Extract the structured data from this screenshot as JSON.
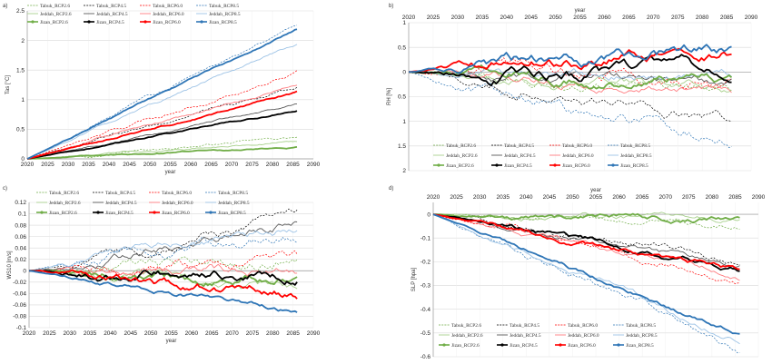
{
  "chart_data": [
    {
      "id": "a",
      "type": "line",
      "panel_label": "a)",
      "ylabel": "Tas [°C]",
      "xlabel": "year",
      "x_axis_position": "bottom",
      "xlim": [
        2020,
        2090
      ],
      "ylim": [
        0,
        2.5
      ],
      "xticks": [
        2020,
        2025,
        2030,
        2035,
        2040,
        2045,
        2050,
        2055,
        2060,
        2065,
        2070,
        2075,
        2080,
        2085,
        2090
      ],
      "yticks": [
        0,
        0.5,
        1,
        1.5,
        2,
        2.5
      ],
      "ytick_labels": [
        "0",
        "0.5",
        "1",
        "1.5",
        "2",
        "2.5"
      ],
      "legend_position": "top",
      "grid": true,
      "series": [
        {
          "name": "Tabuk_RCP2.6",
          "color": "#70AD47",
          "style": "dash-thin",
          "start": 0,
          "end": 0.36,
          "wiggle": 0.025
        },
        {
          "name": "Tabuk_RCP4.5",
          "color": "#000000",
          "style": "dash-thin",
          "start": 0,
          "end": 1.22,
          "wiggle": 0.03
        },
        {
          "name": "Tabuk_RCP6.0",
          "color": "#FF0000",
          "style": "dash-thin",
          "start": 0,
          "end": 1.45,
          "wiggle": 0.035
        },
        {
          "name": "Tabuk_RCP8.5",
          "color": "#2E75B6",
          "style": "dash-thin",
          "start": 0,
          "end": 2.3,
          "wiggle": 0.035
        },
        {
          "name": "Jeddah_RCP2.6",
          "color": "#A9D18E",
          "style": "solid-thin",
          "start": 0,
          "end": 0.3,
          "wiggle": 0.02
        },
        {
          "name": "Jeddah_RCP4.5",
          "color": "#595959",
          "style": "solid-thin",
          "start": 0,
          "end": 0.92,
          "wiggle": 0.02
        },
        {
          "name": "Jeddah_RCP6.0",
          "color": "#FF7C80",
          "style": "solid-thin",
          "start": 0,
          "end": 1.25,
          "wiggle": 0.025
        },
        {
          "name": "Jeddah_RCP8.5",
          "color": "#9DC3E6",
          "style": "solid-thin",
          "start": 0,
          "end": 1.95,
          "wiggle": 0.025
        },
        {
          "name": "Jizan_RCP2.6",
          "color": "#70AD47",
          "style": "marker-thick",
          "start": 0,
          "end": 0.2,
          "wiggle": 0.015
        },
        {
          "name": "Jizan_RCP4.5",
          "color": "#000000",
          "style": "marker-thick",
          "start": 0,
          "end": 0.82,
          "wiggle": 0.015
        },
        {
          "name": "Jizan_RCP6.0",
          "color": "#FF0000",
          "style": "marker-thick",
          "start": 0,
          "end": 1.12,
          "wiggle": 0.02
        },
        {
          "name": "Jizan_RCP8.5",
          "color": "#2E75B6",
          "style": "marker-thick",
          "start": 0,
          "end": 2.2,
          "wiggle": 0.02
        }
      ]
    },
    {
      "id": "b",
      "type": "line",
      "panel_label": "b)",
      "ylabel": "RH [%]",
      "xlabel": "year",
      "x_axis_position": "top",
      "xlim": [
        2020,
        2090
      ],
      "ylim": [
        -2,
        1
      ],
      "xticks": [
        2020,
        2025,
        2030,
        2035,
        2040,
        2045,
        2050,
        2055,
        2060,
        2065,
        2070,
        2075,
        2080,
        2085,
        2090
      ],
      "yticks": [
        -2,
        -1.5,
        -1,
        -0.5,
        0,
        0.5,
        1
      ],
      "ytick_labels": [
        "2",
        "1.5",
        "1",
        "0.5",
        "0",
        "0.5",
        "1"
      ],
      "legend_position": "bottom",
      "grid": true,
      "series": [
        {
          "name": "Tabuk_RCP2.6",
          "color": "#70AD47",
          "style": "dash-thin",
          "start": 0,
          "end": -0.5,
          "wiggle": 0.15
        },
        {
          "name": "Tabuk_RCP4.5",
          "color": "#000000",
          "style": "dash-thin",
          "start": 0,
          "end": -0.95,
          "wiggle": 0.15
        },
        {
          "name": "Tabuk_RCP6.0",
          "color": "#FF0000",
          "style": "dash-thin",
          "start": 0,
          "end": -0.3,
          "wiggle": 0.18
        },
        {
          "name": "Tabuk_RCP8.5",
          "color": "#2E75B6",
          "style": "dash-thin",
          "start": 0,
          "end": -1.45,
          "wiggle": 0.18
        },
        {
          "name": "Jeddah_RCP2.6",
          "color": "#A9D18E",
          "style": "solid-thin",
          "start": 0,
          "end": -0.3,
          "wiggle": 0.12
        },
        {
          "name": "Jeddah_RCP4.5",
          "color": "#595959",
          "style": "solid-thin",
          "start": 0,
          "end": -0.2,
          "wiggle": 0.12
        },
        {
          "name": "Jeddah_RCP6.0",
          "color": "#FF7C80",
          "style": "solid-thin",
          "start": 0,
          "end": -0.35,
          "wiggle": 0.12
        },
        {
          "name": "Jeddah_RCP8.5",
          "color": "#9DC3E6",
          "style": "solid-thin",
          "start": 0,
          "end": -0.1,
          "wiggle": 0.12
        },
        {
          "name": "Jizan_RCP2.6",
          "color": "#70AD47",
          "style": "marker-thick",
          "start": 0,
          "end": -0.2,
          "wiggle": 0.14
        },
        {
          "name": "Jizan_RCP4.5",
          "color": "#000000",
          "style": "marker-thick",
          "start": 0,
          "end": 0.0,
          "wiggle": 0.16
        },
        {
          "name": "Jizan_RCP6.0",
          "color": "#FF0000",
          "style": "marker-thick",
          "start": 0,
          "end": 0.45,
          "wiggle": 0.15
        },
        {
          "name": "Jizan_RCP8.5",
          "color": "#2E75B6",
          "style": "marker-thick",
          "start": 0,
          "end": 0.45,
          "wiggle": 0.16
        }
      ]
    },
    {
      "id": "c",
      "type": "line",
      "panel_label": "c)",
      "ylabel": "WS10 [m/s]",
      "xlabel": "year",
      "x_axis_position": "bottom",
      "xlim": [
        2020,
        2090
      ],
      "ylim": [
        -0.1,
        0.12
      ],
      "xticks": [
        2020,
        2025,
        2030,
        2035,
        2040,
        2045,
        2050,
        2055,
        2060,
        2065,
        2070,
        2075,
        2080,
        2085,
        2090
      ],
      "yticks": [
        -0.1,
        -0.08,
        -0.06,
        -0.04,
        -0.02,
        0,
        0.02,
        0.04,
        0.06,
        0.08,
        0.1,
        0.12
      ],
      "ytick_labels": [
        "-0.1",
        "-0.08",
        "-0.06",
        "-0.04",
        "-0.02",
        "0",
        "0.02",
        "0.04",
        "0.06",
        "0.08",
        "0.1",
        "0.12"
      ],
      "legend_position": "top",
      "grid": true,
      "series": [
        {
          "name": "Tabuk_RCP2.6",
          "color": "#70AD47",
          "style": "dash-thin",
          "start": 0,
          "end": 0.02,
          "wiggle": 0.012
        },
        {
          "name": "Tabuk_RCP4.5",
          "color": "#000000",
          "style": "dash-thin",
          "start": 0,
          "end": 0.092,
          "wiggle": 0.01
        },
        {
          "name": "Tabuk_RCP6.0",
          "color": "#FF0000",
          "style": "dash-thin",
          "start": 0,
          "end": 0.015,
          "wiggle": 0.012
        },
        {
          "name": "Tabuk_RCP8.5",
          "color": "#2E75B6",
          "style": "dash-thin",
          "start": 0,
          "end": 0.062,
          "wiggle": 0.012
        },
        {
          "name": "Jeddah_RCP2.6",
          "color": "#A9D18E",
          "style": "solid-thin",
          "start": 0,
          "end": -0.035,
          "wiggle": 0.01
        },
        {
          "name": "Jeddah_RCP4.5",
          "color": "#595959",
          "style": "solid-thin",
          "start": 0,
          "end": 0.08,
          "wiggle": 0.01
        },
        {
          "name": "Jeddah_RCP6.0",
          "color": "#FF7C80",
          "style": "solid-thin",
          "start": 0,
          "end": -0.005,
          "wiggle": 0.01
        },
        {
          "name": "Jeddah_RCP8.5",
          "color": "#9DC3E6",
          "style": "solid-thin",
          "start": 0,
          "end": 0.075,
          "wiggle": 0.01
        },
        {
          "name": "Jizan_RCP2.6",
          "color": "#70AD47",
          "style": "marker-thick",
          "start": 0,
          "end": -0.02,
          "wiggle": 0.01
        },
        {
          "name": "Jizan_RCP4.5",
          "color": "#000000",
          "style": "marker-thick",
          "start": 0,
          "end": -0.005,
          "wiggle": 0.01
        },
        {
          "name": "Jizan_RCP6.0",
          "color": "#FF0000",
          "style": "marker-thick",
          "start": 0,
          "end": -0.04,
          "wiggle": 0.01
        },
        {
          "name": "Jizan_RCP8.5",
          "color": "#2E75B6",
          "style": "marker-thick",
          "start": 0,
          "end": -0.072,
          "wiggle": 0.005
        }
      ]
    },
    {
      "id": "d",
      "type": "line",
      "panel_label": "d)",
      "ylabel": "SLP [hpa]",
      "xlabel": "year",
      "x_axis_position": "top",
      "xlim": [
        2020,
        2090
      ],
      "ylim": [
        -0.6,
        0.05
      ],
      "xticks": [
        2020,
        2025,
        2030,
        2035,
        2040,
        2045,
        2050,
        2055,
        2060,
        2065,
        2070,
        2075,
        2080,
        2085,
        2090
      ],
      "yticks": [
        -0.6,
        -0.5,
        -0.4,
        -0.3,
        -0.2,
        -0.1,
        0
      ],
      "ytick_labels": [
        "-0.6",
        "-0.5",
        "-0.4",
        "-0.3",
        "-0.2",
        "-0.1",
        "0"
      ],
      "legend_position": "bottom",
      "grid": true,
      "series": [
        {
          "name": "Tabuk_RCP2.6",
          "color": "#70AD47",
          "style": "dash-thin",
          "start": 0,
          "end": -0.05,
          "wiggle": 0.015
        },
        {
          "name": "Tabuk_RCP4.5",
          "color": "#000000",
          "style": "dash-thin",
          "start": 0,
          "end": -0.2,
          "wiggle": 0.02
        },
        {
          "name": "Tabuk_RCP6.0",
          "color": "#FF0000",
          "style": "dash-thin",
          "start": 0,
          "end": -0.28,
          "wiggle": 0.02
        },
        {
          "name": "Tabuk_RCP8.5",
          "color": "#2E75B6",
          "style": "dash-thin",
          "start": 0,
          "end": -0.57,
          "wiggle": 0.02
        },
        {
          "name": "Jeddah_RCP2.6",
          "color": "#A9D18E",
          "style": "solid-thin",
          "start": 0,
          "end": -0.03,
          "wiggle": 0.015
        },
        {
          "name": "Jeddah_RCP4.5",
          "color": "#595959",
          "style": "solid-thin",
          "start": 0,
          "end": -0.22,
          "wiggle": 0.015
        },
        {
          "name": "Jeddah_RCP6.0",
          "color": "#FF7C80",
          "style": "solid-thin",
          "start": 0,
          "end": -0.25,
          "wiggle": 0.015
        },
        {
          "name": "Jeddah_RCP8.5",
          "color": "#9DC3E6",
          "style": "solid-thin",
          "start": 0,
          "end": -0.53,
          "wiggle": 0.015
        },
        {
          "name": "Jizan_RCP2.6",
          "color": "#70AD47",
          "style": "marker-thick",
          "start": 0,
          "end": -0.02,
          "wiggle": 0.015
        },
        {
          "name": "Jizan_RCP4.5",
          "color": "#000000",
          "style": "marker-thick",
          "start": 0,
          "end": -0.23,
          "wiggle": 0.015
        },
        {
          "name": "Jizan_RCP6.0",
          "color": "#FF0000",
          "style": "marker-thick",
          "start": 0,
          "end": -0.24,
          "wiggle": 0.015
        },
        {
          "name": "Jizan_RCP8.5",
          "color": "#2E75B6",
          "style": "marker-thick",
          "start": 0,
          "end": -0.5,
          "wiggle": 0.012
        }
      ]
    }
  ]
}
